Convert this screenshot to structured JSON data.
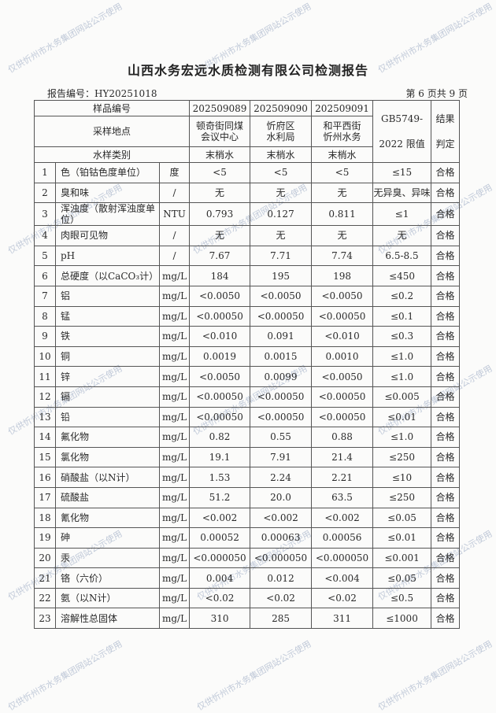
{
  "title": "山西水务宏远水质检测有限公司检测报告",
  "report_no": "报告编号：HY20251018",
  "page_info": "第 6 页共 9 页",
  "watermark": "仅供忻州市水务集团网站公示使用",
  "header": {
    "sample_no_label": "样品编号",
    "location_label": "采样地点",
    "type_label": "水样类别",
    "standard_line1": "GB5749-",
    "standard_line2": "2022 限值",
    "result_line1": "结果",
    "result_line2": "判定",
    "samples": [
      {
        "no": "202509089",
        "loc1": "顿奇街同煤",
        "loc2": "会议中心",
        "type": "末梢水"
      },
      {
        "no": "202509090",
        "loc1": "忻府区",
        "loc2": "水利局",
        "type": "末梢水"
      },
      {
        "no": "202509091",
        "loc1": "和平西街",
        "loc2": "忻州水务",
        "type": "末梢水"
      }
    ]
  },
  "rows": [
    {
      "n": "1",
      "item": "色（铂钴色度单位）",
      "unit": "度",
      "v1": "<5",
      "v2": "<5",
      "v3": "<5",
      "limit": "≤15",
      "result": "合格"
    },
    {
      "n": "2",
      "item": "臭和味",
      "unit": "/",
      "v1": "无",
      "v2": "无",
      "v3": "无",
      "limit": "无异臭、异味",
      "result": "合格"
    },
    {
      "n": "3",
      "item": "浑浊度（散射浑浊度单位）",
      "unit": "NTU",
      "v1": "0.793",
      "v2": "0.127",
      "v3": "0.811",
      "limit": "≤1",
      "result": "合格"
    },
    {
      "n": "4",
      "item": "肉眼可见物",
      "unit": "/",
      "v1": "无",
      "v2": "无",
      "v3": "无",
      "limit": "无",
      "result": "合格"
    },
    {
      "n": "5",
      "item": "pH",
      "unit": "/",
      "v1": "7.67",
      "v2": "7.71",
      "v3": "7.74",
      "limit": "6.5-8.5",
      "result": "合格"
    },
    {
      "n": "6",
      "item": "总硬度（以CaCO₃计）",
      "unit": "mg/L",
      "v1": "184",
      "v2": "195",
      "v3": "198",
      "limit": "≤450",
      "result": "合格"
    },
    {
      "n": "7",
      "item": "铝",
      "unit": "mg/L",
      "v1": "<0.0050",
      "v2": "<0.0050",
      "v3": "<0.0050",
      "limit": "≤0.2",
      "result": "合格"
    },
    {
      "n": "8",
      "item": "锰",
      "unit": "mg/L",
      "v1": "<0.00050",
      "v2": "<0.00050",
      "v3": "<0.00050",
      "limit": "≤0.1",
      "result": "合格"
    },
    {
      "n": "9",
      "item": "铁",
      "unit": "mg/L",
      "v1": "<0.010",
      "v2": "0.091",
      "v3": "<0.010",
      "limit": "≤0.3",
      "result": "合格"
    },
    {
      "n": "10",
      "item": "铜",
      "unit": "mg/L",
      "v1": "0.0019",
      "v2": "0.0015",
      "v3": "0.0010",
      "limit": "≤1.0",
      "result": "合格"
    },
    {
      "n": "11",
      "item": "锌",
      "unit": "mg/L",
      "v1": "<0.0050",
      "v2": "0.0099",
      "v3": "<0.0050",
      "limit": "≤1.0",
      "result": "合格"
    },
    {
      "n": "12",
      "item": "镉",
      "unit": "mg/L",
      "v1": "<0.00050",
      "v2": "<0.00050",
      "v3": "<0.00050",
      "limit": "≤0.005",
      "result": "合格"
    },
    {
      "n": "13",
      "item": "铅",
      "unit": "mg/L",
      "v1": "<0.00050",
      "v2": "<0.00050",
      "v3": "<0.00050",
      "limit": "≤0.01",
      "result": "合格"
    },
    {
      "n": "14",
      "item": "氟化物",
      "unit": "mg/L",
      "v1": "0.82",
      "v2": "0.55",
      "v3": "0.88",
      "limit": "≤1.0",
      "result": "合格"
    },
    {
      "n": "15",
      "item": "氯化物",
      "unit": "mg/L",
      "v1": "19.1",
      "v2": "7.91",
      "v3": "21.4",
      "limit": "≤250",
      "result": "合格"
    },
    {
      "n": "16",
      "item": "硝酸盐（以N计）",
      "unit": "mg/L",
      "v1": "1.53",
      "v2": "2.24",
      "v3": "2.21",
      "limit": "≤10",
      "result": "合格"
    },
    {
      "n": "17",
      "item": "硫酸盐",
      "unit": "mg/L",
      "v1": "51.2",
      "v2": "20.0",
      "v3": "63.5",
      "limit": "≤250",
      "result": "合格"
    },
    {
      "n": "18",
      "item": "氰化物",
      "unit": "mg/L",
      "v1": "<0.002",
      "v2": "<0.002",
      "v3": "<0.002",
      "limit": "≤0.05",
      "result": "合格"
    },
    {
      "n": "19",
      "item": "砷",
      "unit": "mg/L",
      "v1": "0.00052",
      "v2": "0.00063",
      "v3": "0.00056",
      "limit": "≤0.01",
      "result": "合格"
    },
    {
      "n": "20",
      "item": "汞",
      "unit": "mg/L",
      "v1": "<0.000050",
      "v2": "<0.000050",
      "v3": "<0.000050",
      "limit": "≤0.001",
      "result": "合格"
    },
    {
      "n": "21",
      "item": "铬（六价）",
      "unit": "mg/L",
      "v1": "0.004",
      "v2": "0.012",
      "v3": "<0.004",
      "limit": "≤0.05",
      "result": "合格"
    },
    {
      "n": "22",
      "item": "氨（以N计）",
      "unit": "mg/L",
      "v1": "<0.02",
      "v2": "<0.02",
      "v3": "<0.02",
      "limit": "≤0.5",
      "result": "合格"
    },
    {
      "n": "23",
      "item": "溶解性总固体",
      "unit": "mg/L",
      "v1": "310",
      "v2": "285",
      "v3": "311",
      "limit": "≤1000",
      "result": "合格"
    }
  ]
}
